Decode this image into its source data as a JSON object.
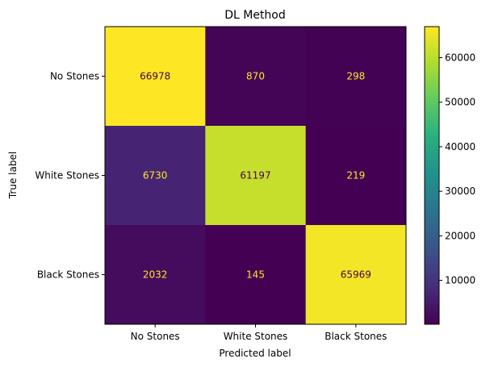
{
  "chart_data": {
    "type": "heatmap",
    "title": "DL Method",
    "xlabel": "Predicted label",
    "ylabel": "True label",
    "x_categories": [
      "No Stones",
      "White Stones",
      "Black Stones"
    ],
    "y_categories": [
      "No Stones",
      "White Stones",
      "Black Stones"
    ],
    "values": [
      [
        66978,
        870,
        298
      ],
      [
        6730,
        61197,
        219
      ],
      [
        2032,
        145,
        65969
      ]
    ],
    "colormap": "viridis",
    "colorbar": {
      "range": [
        145,
        66978
      ],
      "ticks": [
        10000,
        20000,
        30000,
        40000,
        50000,
        60000
      ],
      "tick_labels": [
        "10000",
        "20000",
        "30000",
        "40000",
        "50000",
        "60000"
      ]
    },
    "text_colors": {
      "on_dark": "#fde725",
      "on_light": "#440154"
    }
  }
}
